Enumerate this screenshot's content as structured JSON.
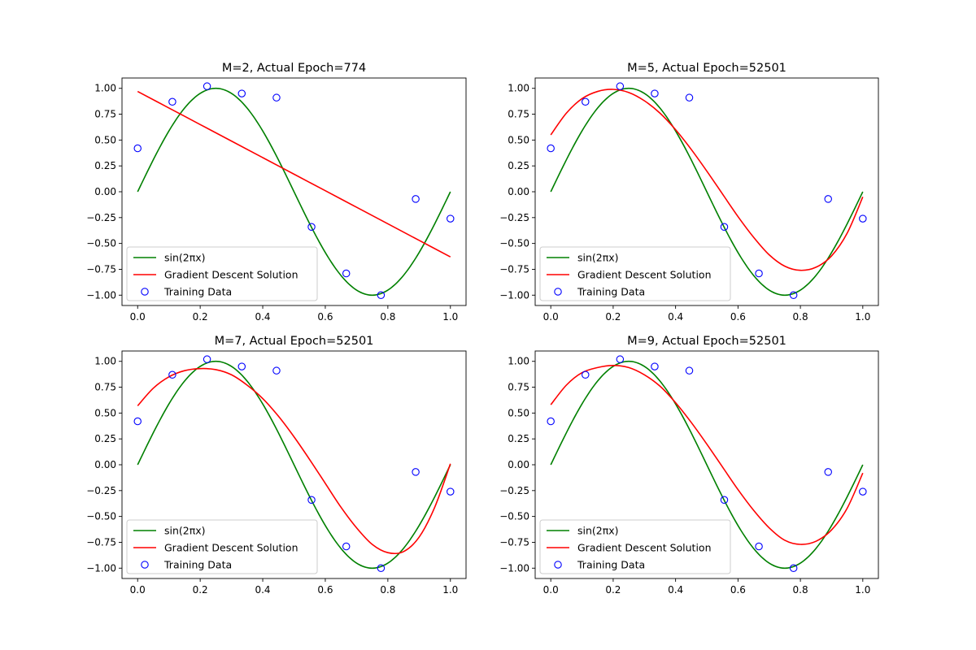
{
  "colors": {
    "true_curve": "#008000",
    "fit_curve": "#ff0000",
    "training_points": "#0000ff",
    "axes": "#000000",
    "legend_border": "#cccccc"
  },
  "legend_labels": {
    "true_curve": "sin(2πx)",
    "fit_curve": "Gradient Descent Solution",
    "training_data": "Training Data"
  },
  "chart_data": [
    {
      "type": "line",
      "title": "M=2, Actual Epoch=774",
      "xlabel": "",
      "ylabel": "",
      "xlim": [
        -0.05,
        1.05
      ],
      "ylim": [
        -1.1,
        1.1
      ],
      "x_ticks": [
        "0.0",
        "0.2",
        "0.4",
        "0.6",
        "0.8",
        "1.0"
      ],
      "y_ticks": [
        "1.00",
        "0.75",
        "0.50",
        "0.25",
        "0.00",
        "−0.25",
        "−0.50",
        "−0.75",
        "−1.00"
      ],
      "grid": false,
      "legend_position": "lower-left",
      "training_data": {
        "x": [
          0.0,
          0.111,
          0.222,
          0.333,
          0.444,
          0.556,
          0.667,
          0.778,
          0.889,
          1.0
        ],
        "y": [
          0.42,
          0.87,
          1.02,
          0.95,
          0.91,
          -0.34,
          -0.79,
          -1.0,
          -0.07,
          -0.26
        ]
      },
      "fit_curve": {
        "x": [
          0.0,
          0.1,
          0.2,
          0.3,
          0.4,
          0.5,
          0.6,
          0.7,
          0.8,
          0.9,
          1.0
        ],
        "y": [
          0.97,
          0.81,
          0.65,
          0.49,
          0.33,
          0.17,
          0.01,
          -0.15,
          -0.31,
          -0.47,
          -0.63
        ]
      }
    },
    {
      "type": "line",
      "title": "M=5, Actual Epoch=52501",
      "xlabel": "",
      "ylabel": "",
      "xlim": [
        -0.05,
        1.05
      ],
      "ylim": [
        -1.1,
        1.1
      ],
      "x_ticks": [
        "0.0",
        "0.2",
        "0.4",
        "0.6",
        "0.8",
        "1.0"
      ],
      "y_ticks": [
        "1.00",
        "0.75",
        "0.50",
        "0.25",
        "0.00",
        "−0.25",
        "−0.50",
        "−0.75",
        "−1.00"
      ],
      "grid": false,
      "legend_position": "lower-left",
      "training_data": {
        "x": [
          0.0,
          0.111,
          0.222,
          0.333,
          0.444,
          0.556,
          0.667,
          0.778,
          0.889,
          1.0
        ],
        "y": [
          0.42,
          0.87,
          1.02,
          0.95,
          0.91,
          -0.34,
          -0.79,
          -1.0,
          -0.07,
          -0.26
        ]
      },
      "fit_curve": {
        "x": [
          0.0,
          0.05,
          0.1,
          0.15,
          0.2,
          0.25,
          0.3,
          0.35,
          0.4,
          0.45,
          0.5,
          0.55,
          0.6,
          0.65,
          0.7,
          0.75,
          0.8,
          0.85,
          0.9,
          0.95,
          1.0
        ],
        "y": [
          0.55,
          0.76,
          0.9,
          0.97,
          0.99,
          0.96,
          0.88,
          0.76,
          0.6,
          0.41,
          0.2,
          -0.02,
          -0.24,
          -0.44,
          -0.61,
          -0.72,
          -0.76,
          -0.73,
          -0.62,
          -0.4,
          -0.05
        ]
      }
    },
    {
      "type": "line",
      "title": "M=7, Actual Epoch=52501",
      "xlabel": "",
      "ylabel": "",
      "xlim": [
        -0.05,
        1.05
      ],
      "ylim": [
        -1.1,
        1.1
      ],
      "x_ticks": [
        "0.0",
        "0.2",
        "0.4",
        "0.6",
        "0.8",
        "1.0"
      ],
      "y_ticks": [
        "1.00",
        "0.75",
        "0.50",
        "0.25",
        "0.00",
        "−0.25",
        "−0.50",
        "−0.75",
        "−1.00"
      ],
      "grid": false,
      "legend_position": "lower-left",
      "training_data": {
        "x": [
          0.0,
          0.111,
          0.222,
          0.333,
          0.444,
          0.556,
          0.667,
          0.778,
          0.889,
          1.0
        ],
        "y": [
          0.42,
          0.87,
          1.02,
          0.95,
          0.91,
          -0.34,
          -0.79,
          -1.0,
          -0.07,
          -0.26
        ]
      },
      "fit_curve": {
        "x": [
          0.0,
          0.05,
          0.1,
          0.15,
          0.2,
          0.25,
          0.3,
          0.35,
          0.4,
          0.45,
          0.5,
          0.55,
          0.6,
          0.65,
          0.7,
          0.75,
          0.8,
          0.85,
          0.9,
          0.95,
          1.0
        ],
        "y": [
          0.57,
          0.74,
          0.85,
          0.91,
          0.93,
          0.92,
          0.87,
          0.77,
          0.64,
          0.47,
          0.27,
          0.05,
          -0.18,
          -0.41,
          -0.61,
          -0.77,
          -0.85,
          -0.84,
          -0.7,
          -0.41,
          0.01
        ]
      }
    },
    {
      "type": "line",
      "title": "M=9, Actual Epoch=52501",
      "xlabel": "",
      "ylabel": "",
      "xlim": [
        -0.05,
        1.05
      ],
      "ylim": [
        -1.1,
        1.1
      ],
      "x_ticks": [
        "0.0",
        "0.2",
        "0.4",
        "0.6",
        "0.8",
        "1.0"
      ],
      "y_ticks": [
        "1.00",
        "0.75",
        "0.50",
        "0.25",
        "0.00",
        "−0.25",
        "−0.50",
        "−0.75",
        "−1.00"
      ],
      "grid": false,
      "legend_position": "lower-left",
      "training_data": {
        "x": [
          0.0,
          0.111,
          0.222,
          0.333,
          0.444,
          0.556,
          0.667,
          0.778,
          0.889,
          1.0
        ],
        "y": [
          0.42,
          0.87,
          1.02,
          0.95,
          0.91,
          -0.34,
          -0.79,
          -1.0,
          -0.07,
          -0.26
        ]
      },
      "fit_curve": {
        "x": [
          0.0,
          0.05,
          0.1,
          0.15,
          0.2,
          0.25,
          0.3,
          0.35,
          0.4,
          0.45,
          0.5,
          0.55,
          0.6,
          0.65,
          0.7,
          0.75,
          0.8,
          0.85,
          0.9,
          0.95,
          1.0
        ],
        "y": [
          0.58,
          0.77,
          0.89,
          0.94,
          0.96,
          0.94,
          0.87,
          0.76,
          0.6,
          0.41,
          0.2,
          -0.02,
          -0.24,
          -0.44,
          -0.61,
          -0.73,
          -0.77,
          -0.74,
          -0.63,
          -0.42,
          -0.08
        ]
      }
    }
  ]
}
